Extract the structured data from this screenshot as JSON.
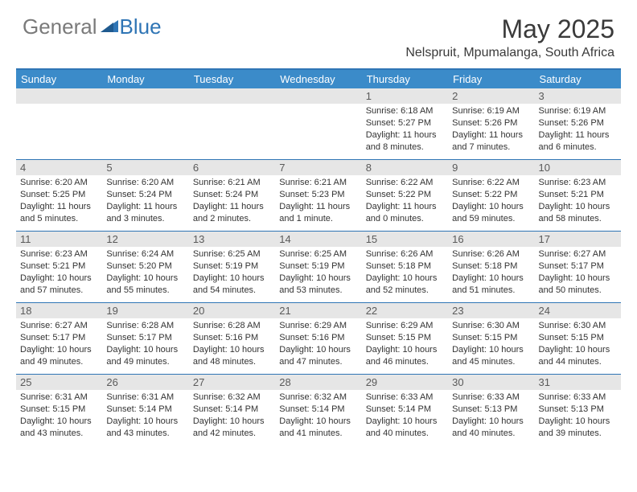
{
  "brand": {
    "part1": "General",
    "part2": "Blue"
  },
  "title": "May 2025",
  "location": "Nelspruit, Mpumalanga, South Africa",
  "colors": {
    "accent": "#3b8bc9",
    "border": "#2f75b5",
    "daybar": "#e6e6e6",
    "text": "#333333",
    "header_text": "#ffffff"
  },
  "day_names": [
    "Sunday",
    "Monday",
    "Tuesday",
    "Wednesday",
    "Thursday",
    "Friday",
    "Saturday"
  ],
  "weeks": [
    [
      {
        "n": "",
        "sr": "",
        "ss": "",
        "dl": ""
      },
      {
        "n": "",
        "sr": "",
        "ss": "",
        "dl": ""
      },
      {
        "n": "",
        "sr": "",
        "ss": "",
        "dl": ""
      },
      {
        "n": "",
        "sr": "",
        "ss": "",
        "dl": ""
      },
      {
        "n": "1",
        "sr": "Sunrise: 6:18 AM",
        "ss": "Sunset: 5:27 PM",
        "dl": "Daylight: 11 hours and 8 minutes."
      },
      {
        "n": "2",
        "sr": "Sunrise: 6:19 AM",
        "ss": "Sunset: 5:26 PM",
        "dl": "Daylight: 11 hours and 7 minutes."
      },
      {
        "n": "3",
        "sr": "Sunrise: 6:19 AM",
        "ss": "Sunset: 5:26 PM",
        "dl": "Daylight: 11 hours and 6 minutes."
      }
    ],
    [
      {
        "n": "4",
        "sr": "Sunrise: 6:20 AM",
        "ss": "Sunset: 5:25 PM",
        "dl": "Daylight: 11 hours and 5 minutes."
      },
      {
        "n": "5",
        "sr": "Sunrise: 6:20 AM",
        "ss": "Sunset: 5:24 PM",
        "dl": "Daylight: 11 hours and 3 minutes."
      },
      {
        "n": "6",
        "sr": "Sunrise: 6:21 AM",
        "ss": "Sunset: 5:24 PM",
        "dl": "Daylight: 11 hours and 2 minutes."
      },
      {
        "n": "7",
        "sr": "Sunrise: 6:21 AM",
        "ss": "Sunset: 5:23 PM",
        "dl": "Daylight: 11 hours and 1 minute."
      },
      {
        "n": "8",
        "sr": "Sunrise: 6:22 AM",
        "ss": "Sunset: 5:22 PM",
        "dl": "Daylight: 11 hours and 0 minutes."
      },
      {
        "n": "9",
        "sr": "Sunrise: 6:22 AM",
        "ss": "Sunset: 5:22 PM",
        "dl": "Daylight: 10 hours and 59 minutes."
      },
      {
        "n": "10",
        "sr": "Sunrise: 6:23 AM",
        "ss": "Sunset: 5:21 PM",
        "dl": "Daylight: 10 hours and 58 minutes."
      }
    ],
    [
      {
        "n": "11",
        "sr": "Sunrise: 6:23 AM",
        "ss": "Sunset: 5:21 PM",
        "dl": "Daylight: 10 hours and 57 minutes."
      },
      {
        "n": "12",
        "sr": "Sunrise: 6:24 AM",
        "ss": "Sunset: 5:20 PM",
        "dl": "Daylight: 10 hours and 55 minutes."
      },
      {
        "n": "13",
        "sr": "Sunrise: 6:25 AM",
        "ss": "Sunset: 5:19 PM",
        "dl": "Daylight: 10 hours and 54 minutes."
      },
      {
        "n": "14",
        "sr": "Sunrise: 6:25 AM",
        "ss": "Sunset: 5:19 PM",
        "dl": "Daylight: 10 hours and 53 minutes."
      },
      {
        "n": "15",
        "sr": "Sunrise: 6:26 AM",
        "ss": "Sunset: 5:18 PM",
        "dl": "Daylight: 10 hours and 52 minutes."
      },
      {
        "n": "16",
        "sr": "Sunrise: 6:26 AM",
        "ss": "Sunset: 5:18 PM",
        "dl": "Daylight: 10 hours and 51 minutes."
      },
      {
        "n": "17",
        "sr": "Sunrise: 6:27 AM",
        "ss": "Sunset: 5:17 PM",
        "dl": "Daylight: 10 hours and 50 minutes."
      }
    ],
    [
      {
        "n": "18",
        "sr": "Sunrise: 6:27 AM",
        "ss": "Sunset: 5:17 PM",
        "dl": "Daylight: 10 hours and 49 minutes."
      },
      {
        "n": "19",
        "sr": "Sunrise: 6:28 AM",
        "ss": "Sunset: 5:17 PM",
        "dl": "Daylight: 10 hours and 49 minutes."
      },
      {
        "n": "20",
        "sr": "Sunrise: 6:28 AM",
        "ss": "Sunset: 5:16 PM",
        "dl": "Daylight: 10 hours and 48 minutes."
      },
      {
        "n": "21",
        "sr": "Sunrise: 6:29 AM",
        "ss": "Sunset: 5:16 PM",
        "dl": "Daylight: 10 hours and 47 minutes."
      },
      {
        "n": "22",
        "sr": "Sunrise: 6:29 AM",
        "ss": "Sunset: 5:15 PM",
        "dl": "Daylight: 10 hours and 46 minutes."
      },
      {
        "n": "23",
        "sr": "Sunrise: 6:30 AM",
        "ss": "Sunset: 5:15 PM",
        "dl": "Daylight: 10 hours and 45 minutes."
      },
      {
        "n": "24",
        "sr": "Sunrise: 6:30 AM",
        "ss": "Sunset: 5:15 PM",
        "dl": "Daylight: 10 hours and 44 minutes."
      }
    ],
    [
      {
        "n": "25",
        "sr": "Sunrise: 6:31 AM",
        "ss": "Sunset: 5:15 PM",
        "dl": "Daylight: 10 hours and 43 minutes."
      },
      {
        "n": "26",
        "sr": "Sunrise: 6:31 AM",
        "ss": "Sunset: 5:14 PM",
        "dl": "Daylight: 10 hours and 43 minutes."
      },
      {
        "n": "27",
        "sr": "Sunrise: 6:32 AM",
        "ss": "Sunset: 5:14 PM",
        "dl": "Daylight: 10 hours and 42 minutes."
      },
      {
        "n": "28",
        "sr": "Sunrise: 6:32 AM",
        "ss": "Sunset: 5:14 PM",
        "dl": "Daylight: 10 hours and 41 minutes."
      },
      {
        "n": "29",
        "sr": "Sunrise: 6:33 AM",
        "ss": "Sunset: 5:14 PM",
        "dl": "Daylight: 10 hours and 40 minutes."
      },
      {
        "n": "30",
        "sr": "Sunrise: 6:33 AM",
        "ss": "Sunset: 5:13 PM",
        "dl": "Daylight: 10 hours and 40 minutes."
      },
      {
        "n": "31",
        "sr": "Sunrise: 6:33 AM",
        "ss": "Sunset: 5:13 PM",
        "dl": "Daylight: 10 hours and 39 minutes."
      }
    ]
  ]
}
